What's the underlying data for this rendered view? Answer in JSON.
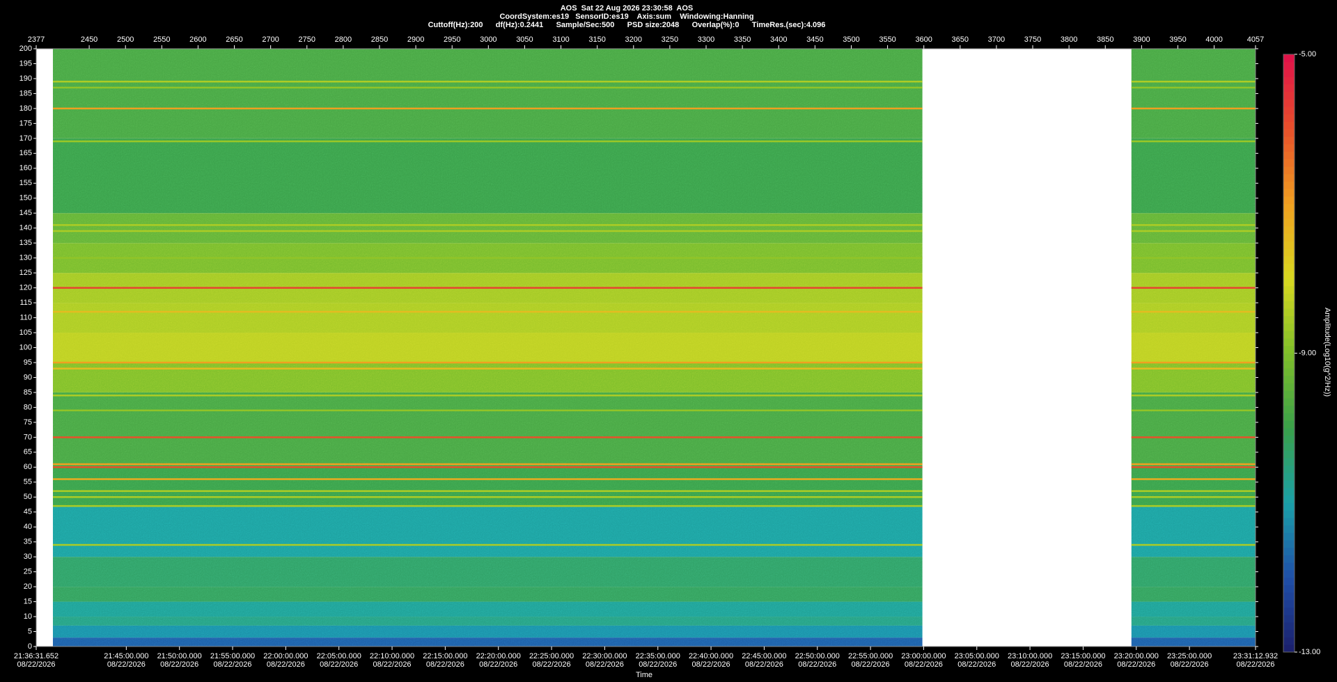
{
  "chart_data": {
    "type": "spectrogram",
    "title": "AOS  Sat 22 Aug 2026 23:30:58  AOS",
    "subtitle": [
      "CoordSystem:es19   SensorID:es19    Axis:sum    Windowing:Hanning",
      "Cuttoff(Hz):200      df(Hz):0.2441      Sample/Sec:500      PSD size:2048      Overlap(%):0      TimeRes.(sec):4.096"
    ],
    "x_label": "Time",
    "colorbar_label": "Amplitude(Log10(g^2/Hz))",
    "xlim": [
      2377,
      4057
    ],
    "xticks": [
      2377,
      2450,
      2500,
      2550,
      2600,
      2650,
      2700,
      2750,
      2800,
      2850,
      2900,
      2950,
      3000,
      3050,
      3100,
      3150,
      3200,
      3250,
      3300,
      3350,
      3400,
      3450,
      3500,
      3550,
      3600,
      3650,
      3700,
      3750,
      3800,
      3850,
      3900,
      3950,
      4000,
      4057
    ],
    "x2ticks": [
      {
        "value": 2377,
        "label": "21:36:31.652"
      },
      {
        "value": 2501.11,
        "label": "21:45:00.000"
      },
      {
        "value": 2574.35,
        "label": "21:50:00.000"
      },
      {
        "value": 2647.59,
        "label": "21:55:00.000"
      },
      {
        "value": 2720.84,
        "label": "22:00:00.000"
      },
      {
        "value": 2794.08,
        "label": "22:05:00.000"
      },
      {
        "value": 2867.32,
        "label": "22:10:00.000"
      },
      {
        "value": 2940.56,
        "label": "22:15:00.000"
      },
      {
        "value": 3013.8,
        "label": "22:20:00.000"
      },
      {
        "value": 3087.05,
        "label": "22:25:00.000"
      },
      {
        "value": 3160.29,
        "label": "22:30:00.000"
      },
      {
        "value": 3233.53,
        "label": "22:35:00.000"
      },
      {
        "value": 3306.77,
        "label": "22:40:00.000"
      },
      {
        "value": 3380.01,
        "label": "22:45:00.000"
      },
      {
        "value": 3453.26,
        "label": "22:50:00.000"
      },
      {
        "value": 3526.5,
        "label": "22:55:00.000"
      },
      {
        "value": 3599.74,
        "label": "23:00:00.000"
      },
      {
        "value": 3672.98,
        "label": "23:05:00.000"
      },
      {
        "value": 3746.22,
        "label": "23:10:00.000"
      },
      {
        "value": 3819.47,
        "label": "23:15:00.000"
      },
      {
        "value": 3892.71,
        "label": "23:20:00.000"
      },
      {
        "value": 3965.95,
        "label": "23:25:00.000"
      },
      {
        "value": 4057,
        "label": "23:31:12.932"
      }
    ],
    "x2tick_dates": [
      "08/22/2026",
      "08/22/2026",
      "08/22/2026",
      "08/22/2026",
      "08/22/2026",
      "08/22/2026",
      "08/22/2026",
      "08/22/2026",
      "08/22/2026",
      "08/22/2026",
      "08/22/2026",
      "08/22/2026",
      "08/22/2026",
      "08/22/2026",
      "08/22/2026",
      "08/22/2026",
      "08/22/2026",
      "08/22/2026",
      "08/22/2026",
      "08/22/2026",
      "08/22/2026",
      "08/22/2026",
      "08/22/2026"
    ],
    "ylim": [
      0,
      200
    ],
    "yticks": [
      0,
      5,
      10,
      15,
      20,
      25,
      30,
      35,
      40,
      45,
      50,
      55,
      60,
      65,
      70,
      75,
      80,
      85,
      90,
      95,
      100,
      105,
      110,
      115,
      120,
      125,
      130,
      135,
      140,
      145,
      150,
      155,
      160,
      165,
      170,
      175,
      180,
      185,
      190,
      195,
      200
    ],
    "clim": [
      -13,
      -5
    ],
    "cticks": [
      {
        "value": -13,
        "label": "-13.00"
      },
      {
        "value": -9,
        "label": "-9.00"
      },
      {
        "value": -5,
        "label": "-5.00"
      }
    ],
    "colormap": [
      "#1b1f6b",
      "#1f4fa8",
      "#1aa0a8",
      "#3aa04a",
      "#7fbf2a",
      "#d8d820",
      "#f0a020",
      "#e8502a",
      "#e0104a"
    ],
    "segments": [
      [
        2400,
        3598
      ],
      [
        3886,
        4057
      ]
    ],
    "bin_edges": [
      0,
      3,
      7,
      10,
      15,
      20,
      30,
      47,
      60,
      85,
      95,
      105,
      115,
      125,
      135,
      145,
      170,
      200
    ],
    "background": [
      -11.8,
      -11.2,
      -10.6,
      -10.8,
      -10.2,
      -10.3,
      -10.9,
      -10.0,
      -9.8,
      -9.0,
      -8.3,
      -8.5,
      -8.6,
      -9.1,
      -9.4,
      -10.0,
      -9.8
    ],
    "lines": [
      {
        "freq": 120,
        "amp": -5.8
      },
      {
        "freq": 180,
        "amp": -7
      },
      {
        "freq": 70,
        "amp": -6
      },
      {
        "freq": 60,
        "amp": -6
      },
      {
        "freq": 61,
        "amp": -7
      },
      {
        "freq": 56,
        "amp": -7.2
      },
      {
        "freq": 95,
        "amp": -7
      },
      {
        "freq": 93,
        "amp": -7.5
      },
      {
        "freq": 112,
        "amp": -7.5
      },
      {
        "freq": 141,
        "amp": -8.5
      },
      {
        "freq": 139,
        "amp": -8.5
      },
      {
        "freq": 189,
        "amp": -8.5
      },
      {
        "freq": 187,
        "amp": -8.8
      },
      {
        "freq": 169,
        "amp": -8.7
      },
      {
        "freq": 130,
        "amp": -8.8
      },
      {
        "freq": 84,
        "amp": -8.5
      },
      {
        "freq": 79,
        "amp": -8.8
      },
      {
        "freq": 52,
        "amp": -8.5
      },
      {
        "freq": 50,
        "amp": -8.5
      },
      {
        "freq": 47,
        "amp": -8.5
      },
      {
        "freq": 34,
        "amp": -8.5
      }
    ]
  }
}
